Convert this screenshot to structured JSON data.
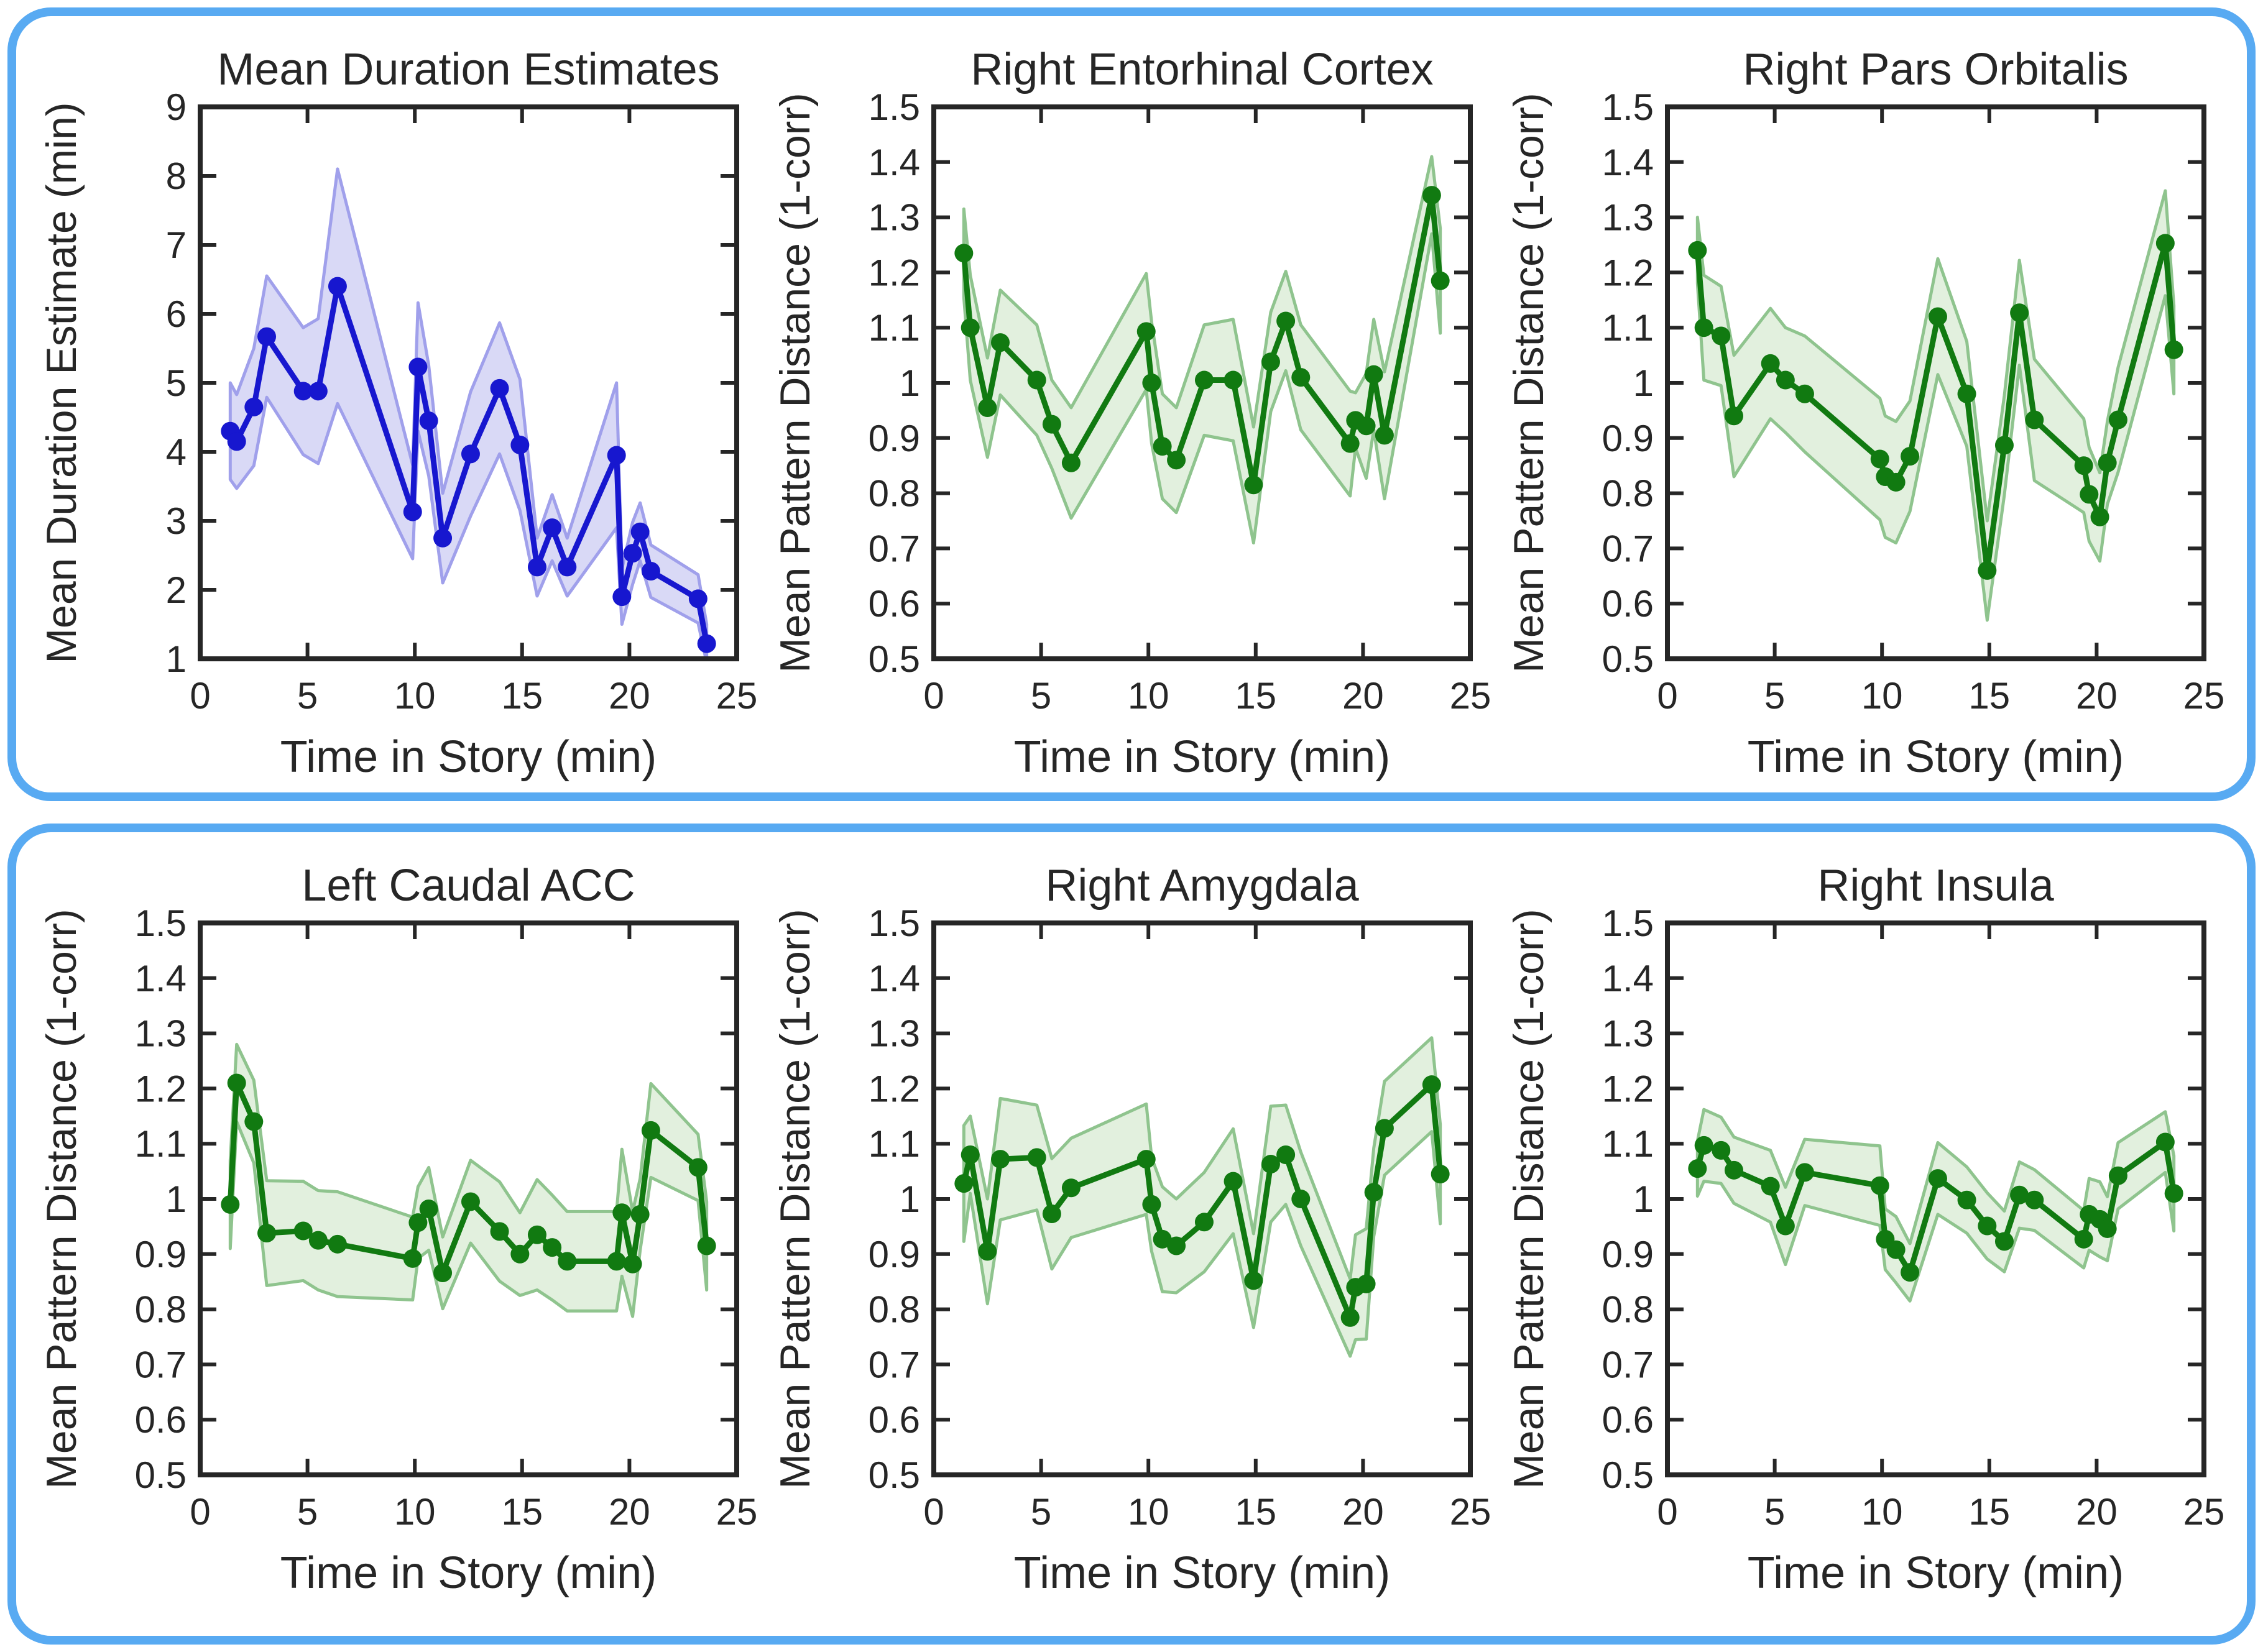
{
  "figure": {
    "background": "#ffffff",
    "panel_border_color": "#58AAF2",
    "axis_color": "#262626",
    "text_color": "#262626",
    "panels": [
      {
        "name": "top",
        "charts": [
          0,
          1,
          2
        ]
      },
      {
        "name": "bottom",
        "charts": [
          3,
          4,
          5
        ]
      }
    ]
  },
  "chart_data": [
    {
      "type": "line",
      "title": "Mean Duration Estimates",
      "xlabel": "Time in Story (min)",
      "ylabel": "Mean Duration Estimate (min)",
      "series_color": "#1717CF",
      "band_fill": "#D9D9F6",
      "band_edge": "#A0A0EB",
      "xlim": [
        0,
        25
      ],
      "ylim": [
        1,
        9
      ],
      "xticks": [
        0,
        5,
        10,
        15,
        20,
        25
      ],
      "xtick_labels": [
        "0",
        "5",
        "10",
        "15",
        "20",
        "25"
      ],
      "yticks": [
        1,
        2,
        3,
        4,
        5,
        6,
        7,
        8,
        9
      ],
      "ytick_labels": [
        "1",
        "2",
        "3",
        "4",
        "5",
        "6",
        "7",
        "8",
        "9"
      ],
      "grid": false,
      "legend": "none",
      "x": [
        1.4,
        1.7,
        2.5,
        3.1,
        4.8,
        5.5,
        6.4,
        9.9,
        10.15,
        10.65,
        11.3,
        12.6,
        13.95,
        14.9,
        15.7,
        16.4,
        17.1,
        19.4,
        19.65,
        20.15,
        20.5,
        21.0,
        23.2,
        23.6
      ],
      "y": [
        4.3,
        4.15,
        4.65,
        5.67,
        4.88,
        4.88,
        6.4,
        3.13,
        5.23,
        4.45,
        2.75,
        3.97,
        4.92,
        4.1,
        2.33,
        2.9,
        2.33,
        3.95,
        1.9,
        2.53,
        2.84,
        2.27,
        1.87,
        1.22
      ],
      "err": [
        0.7,
        0.68,
        0.85,
        0.88,
        0.92,
        1.05,
        1.7,
        0.68,
        0.93,
        0.8,
        0.65,
        0.9,
        0.95,
        0.95,
        0.42,
        0.48,
        0.42,
        1.05,
        0.4,
        0.45,
        0.42,
        0.38,
        0.35,
        0.28
      ]
    },
    {
      "type": "line",
      "title": "Right Entorhinal Cortex",
      "xlabel": "Time in Story (min)",
      "ylabel": "Mean Pattern Distance (1-corr)",
      "series_color": "#117A11",
      "band_fill": "#E2F0DE",
      "band_edge": "#8FC48E",
      "xlim": [
        0,
        25
      ],
      "ylim": [
        0.5,
        1.5
      ],
      "xticks": [
        0,
        5,
        10,
        15,
        20,
        25
      ],
      "xtick_labels": [
        "0",
        "5",
        "10",
        "15",
        "20",
        "25"
      ],
      "yticks": [
        0.5,
        0.6,
        0.7,
        0.8,
        0.9,
        1.0,
        1.1,
        1.2,
        1.3,
        1.4,
        1.5
      ],
      "ytick_labels": [
        "0.5",
        "0.6",
        "0.7",
        "0.8",
        "0.9",
        "1",
        "1.1",
        "1.2",
        "1.3",
        "1.4",
        "1.5"
      ],
      "grid": false,
      "legend": "none",
      "x": [
        1.4,
        1.7,
        2.5,
        3.1,
        4.8,
        5.5,
        6.4,
        9.9,
        10.15,
        10.65,
        11.3,
        12.6,
        13.95,
        14.9,
        15.7,
        16.4,
        17.1,
        19.4,
        19.65,
        20.15,
        20.5,
        21.0,
        23.2,
        23.6
      ],
      "y": [
        1.235,
        1.1,
        0.955,
        1.073,
        1.005,
        0.925,
        0.855,
        1.093,
        1.0,
        0.885,
        0.86,
        1.005,
        1.005,
        0.815,
        1.038,
        1.112,
        1.01,
        0.89,
        0.932,
        0.922,
        1.015,
        0.905,
        1.34,
        1.185
      ],
      "err": [
        0.08,
        0.095,
        0.09,
        0.095,
        0.1,
        0.08,
        0.1,
        0.105,
        0.11,
        0.095,
        0.095,
        0.1,
        0.11,
        0.105,
        0.09,
        0.09,
        0.095,
        0.095,
        0.05,
        0.095,
        0.1,
        0.115,
        0.07,
        0.095
      ]
    },
    {
      "type": "line",
      "title": "Right Pars Orbitalis",
      "xlabel": "Time in Story (min)",
      "ylabel": "Mean Pattern Distance (1-corr)",
      "series_color": "#117A11",
      "band_fill": "#E2F0DE",
      "band_edge": "#8FC48E",
      "xlim": [
        0,
        25
      ],
      "ylim": [
        0.5,
        1.5
      ],
      "xticks": [
        0,
        5,
        10,
        15,
        20,
        25
      ],
      "xtick_labels": [
        "0",
        "5",
        "10",
        "15",
        "20",
        "25"
      ],
      "yticks": [
        0.5,
        0.6,
        0.7,
        0.8,
        0.9,
        1.0,
        1.1,
        1.2,
        1.3,
        1.4,
        1.5
      ],
      "ytick_labels": [
        "0.5",
        "0.6",
        "0.7",
        "0.8",
        "0.9",
        "1",
        "1.1",
        "1.2",
        "1.3",
        "1.4",
        "1.5"
      ],
      "grid": false,
      "legend": "none",
      "x": [
        1.4,
        1.7,
        2.5,
        3.1,
        4.8,
        5.5,
        6.4,
        9.9,
        10.15,
        10.65,
        11.3,
        12.6,
        13.95,
        14.9,
        15.7,
        16.4,
        17.1,
        19.4,
        19.65,
        20.15,
        20.5,
        21.0,
        23.2,
        23.6
      ],
      "y": [
        1.24,
        1.1,
        1.085,
        0.94,
        1.035,
        1.005,
        0.98,
        0.862,
        0.83,
        0.82,
        0.867,
        1.12,
        0.98,
        0.66,
        0.887,
        1.127,
        0.933,
        0.85,
        0.798,
        0.757,
        0.855,
        0.933,
        1.253,
        1.06
      ],
      "err": [
        0.06,
        0.095,
        0.09,
        0.11,
        0.1,
        0.095,
        0.105,
        0.11,
        0.11,
        0.11,
        0.1,
        0.105,
        0.095,
        0.09,
        0.09,
        0.095,
        0.11,
        0.085,
        0.085,
        0.08,
        0.075,
        0.095,
        0.095,
        0.08
      ]
    },
    {
      "type": "line",
      "title": "Left Caudal ACC",
      "xlabel": "Time in Story (min)",
      "ylabel": "Mean Pattern Distance (1-corr)",
      "series_color": "#117A11",
      "band_fill": "#E2F0DE",
      "band_edge": "#8FC48E",
      "xlim": [
        0,
        25
      ],
      "ylim": [
        0.5,
        1.5
      ],
      "xticks": [
        0,
        5,
        10,
        15,
        20,
        25
      ],
      "xtick_labels": [
        "0",
        "5",
        "10",
        "15",
        "20",
        "25"
      ],
      "yticks": [
        0.5,
        0.6,
        0.7,
        0.8,
        0.9,
        1.0,
        1.1,
        1.2,
        1.3,
        1.4,
        1.5
      ],
      "ytick_labels": [
        "0.5",
        "0.6",
        "0.7",
        "0.8",
        "0.9",
        "1",
        "1.1",
        "1.2",
        "1.3",
        "1.4",
        "1.5"
      ],
      "grid": false,
      "legend": "none",
      "x": [
        1.4,
        1.7,
        2.5,
        3.1,
        4.8,
        5.5,
        6.4,
        9.9,
        10.15,
        10.65,
        11.3,
        12.6,
        13.95,
        14.9,
        15.7,
        16.4,
        17.1,
        19.4,
        19.65,
        20.15,
        20.5,
        21.0,
        23.2,
        23.6
      ],
      "y": [
        0.99,
        1.21,
        1.14,
        0.938,
        0.942,
        0.925,
        0.918,
        0.892,
        0.957,
        0.982,
        0.866,
        0.995,
        0.941,
        0.9,
        0.935,
        0.912,
        0.887,
        0.887,
        0.975,
        0.882,
        0.972,
        1.124,
        1.057,
        0.915
      ],
      "err": [
        0.08,
        0.07,
        0.075,
        0.095,
        0.09,
        0.09,
        0.095,
        0.075,
        0.065,
        0.075,
        0.065,
        0.075,
        0.09,
        0.075,
        0.1,
        0.095,
        0.09,
        0.09,
        0.115,
        0.095,
        0.065,
        0.085,
        0.06,
        0.08
      ]
    },
    {
      "type": "line",
      "title": "Right Amygdala",
      "xlabel": "Time in Story (min)",
      "ylabel": "Mean Pattern Distance (1-corr)",
      "series_color": "#117A11",
      "band_fill": "#E2F0DE",
      "band_edge": "#8FC48E",
      "xlim": [
        0,
        25
      ],
      "ylim": [
        0.5,
        1.5
      ],
      "xticks": [
        0,
        5,
        10,
        15,
        20,
        25
      ],
      "xtick_labels": [
        "0",
        "5",
        "10",
        "15",
        "20",
        "25"
      ],
      "yticks": [
        0.5,
        0.6,
        0.7,
        0.8,
        0.9,
        1.0,
        1.1,
        1.2,
        1.3,
        1.4,
        1.5
      ],
      "ytick_labels": [
        "0.5",
        "0.6",
        "0.7",
        "0.8",
        "0.9",
        "1",
        "1.1",
        "1.2",
        "1.3",
        "1.4",
        "1.5"
      ],
      "grid": false,
      "legend": "none",
      "x": [
        1.4,
        1.7,
        2.5,
        3.1,
        4.8,
        5.5,
        6.4,
        9.9,
        10.15,
        10.65,
        11.3,
        12.6,
        13.95,
        14.9,
        15.7,
        16.4,
        17.1,
        19.4,
        19.65,
        20.15,
        20.5,
        21.0,
        23.2,
        23.6
      ],
      "y": [
        1.028,
        1.08,
        0.905,
        1.072,
        1.075,
        0.973,
        1.02,
        1.072,
        0.99,
        0.927,
        0.915,
        0.958,
        1.032,
        0.852,
        1.063,
        1.08,
        1.0,
        0.785,
        0.84,
        0.846,
        1.012,
        1.128,
        1.207,
        1.045
      ],
      "err": [
        0.105,
        0.07,
        0.095,
        0.11,
        0.095,
        0.1,
        0.09,
        0.1,
        0.085,
        0.095,
        0.085,
        0.09,
        0.095,
        0.085,
        0.105,
        0.09,
        0.085,
        0.07,
        0.095,
        0.1,
        0.08,
        0.085,
        0.085,
        0.09
      ]
    },
    {
      "type": "line",
      "title": "Right Insula",
      "xlabel": "Time in Story (min)",
      "ylabel": "Mean Pattern Distance (1-corr)",
      "series_color": "#117A11",
      "band_fill": "#E2F0DE",
      "band_edge": "#8FC48E",
      "xlim": [
        0,
        25
      ],
      "ylim": [
        0.5,
        1.5
      ],
      "xticks": [
        0,
        5,
        10,
        15,
        20,
        25
      ],
      "xtick_labels": [
        "0",
        "5",
        "10",
        "15",
        "20",
        "25"
      ],
      "yticks": [
        0.5,
        0.6,
        0.7,
        0.8,
        0.9,
        1.0,
        1.1,
        1.2,
        1.3,
        1.4,
        1.5
      ],
      "ytick_labels": [
        "0.5",
        "0.6",
        "0.7",
        "0.8",
        "0.9",
        "1",
        "1.1",
        "1.2",
        "1.3",
        "1.4",
        "1.5"
      ],
      "grid": false,
      "legend": "none",
      "x": [
        1.4,
        1.7,
        2.5,
        3.1,
        4.8,
        5.5,
        6.4,
        9.9,
        10.15,
        10.65,
        11.3,
        12.6,
        13.95,
        14.9,
        15.7,
        16.4,
        17.1,
        19.4,
        19.65,
        20.15,
        20.5,
        21.0,
        23.2,
        23.6
      ],
      "y": [
        1.055,
        1.097,
        1.088,
        1.052,
        1.023,
        0.951,
        1.048,
        1.024,
        0.927,
        0.908,
        0.867,
        1.037,
        0.998,
        0.951,
        0.923,
        1.007,
        0.998,
        0.927,
        0.972,
        0.963,
        0.946,
        1.042,
        1.103,
        1.01
      ],
      "err": [
        0.05,
        0.065,
        0.06,
        0.06,
        0.065,
        0.07,
        0.06,
        0.072,
        0.055,
        0.06,
        0.052,
        0.065,
        0.06,
        0.06,
        0.055,
        0.06,
        0.055,
        0.052,
        0.065,
        0.068,
        0.058,
        0.06,
        0.055,
        0.068
      ]
    }
  ]
}
